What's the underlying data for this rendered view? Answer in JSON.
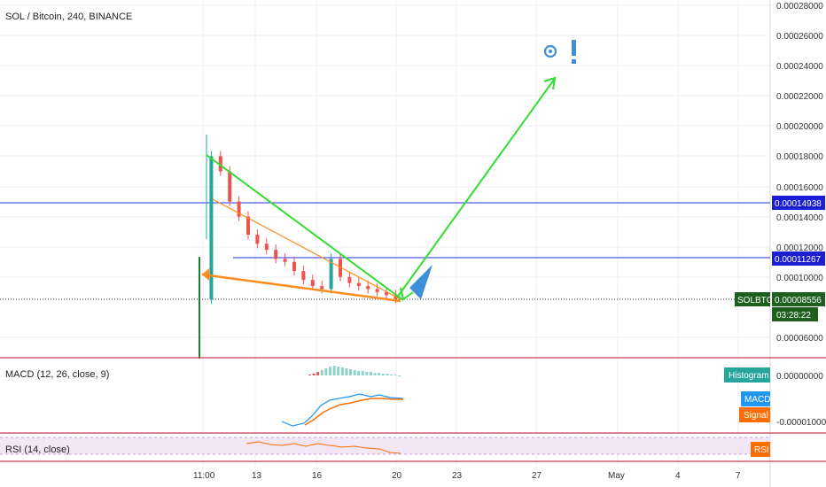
{
  "chart_title": "SOL / Bitcoin, 240, BINANCE",
  "price_axis": {
    "ticks": [
      "0.00028000",
      "0.00026000",
      "0.00024000",
      "0.00022000",
      "0.00020000",
      "0.00018000",
      "0.00016000",
      "0.00014000",
      "0.00012000",
      "0.00010000",
      "0.00006000"
    ],
    "range": [
      5e-05,
      0.00029
    ]
  },
  "time_axis": {
    "ticks": [
      "11:00",
      "13",
      "16",
      "20",
      "23",
      "27",
      "May",
      "4",
      "7"
    ]
  },
  "markers": {
    "horizontal_lines": [
      {
        "value": 0.00014938,
        "label": "0.00014938",
        "color": "#2233dd"
      },
      {
        "value": 0.00011267,
        "label": "0.00011267",
        "color": "#2233dd"
      }
    ],
    "last_price": {
      "symbol": "SOLBTC",
      "value": 8.556e-05,
      "label": "0.00008556",
      "countdown": "03:28:22",
      "color": "#1e5e1e"
    }
  },
  "indicators": {
    "macd": {
      "title": "MACD (12, 26, close, 9)",
      "ticks": [
        "0.00000000",
        "-0.00001000"
      ],
      "legend": [
        "Histogram",
        "MACD",
        "Signal"
      ],
      "colors": [
        "#26a69a",
        "#2196f3",
        "#ff6d00"
      ]
    },
    "rsi": {
      "title": "RSI (14, close)",
      "badge": "RSI",
      "color": "#ff6d00"
    }
  },
  "chart_data": {
    "type": "line",
    "title": "SOL / Bitcoin, 240, BINANCE",
    "series": [
      {
        "values": [
          8.5e-05,
          0.00018,
          0.00017,
          0.00015,
          0.00014,
          0.000128,
          0.000122,
          0.000118,
          0.000112,
          0.00011,
          0.000104,
          9.8e-05,
          9.4e-05,
          9.2e-05,
          0.000112,
          0.0001,
          9.6e-05,
          9.4e-05,
          9.2e-05,
          9e-05,
          8.8e-05,
          8.56e-05
        ]
      }
    ]
  }
}
